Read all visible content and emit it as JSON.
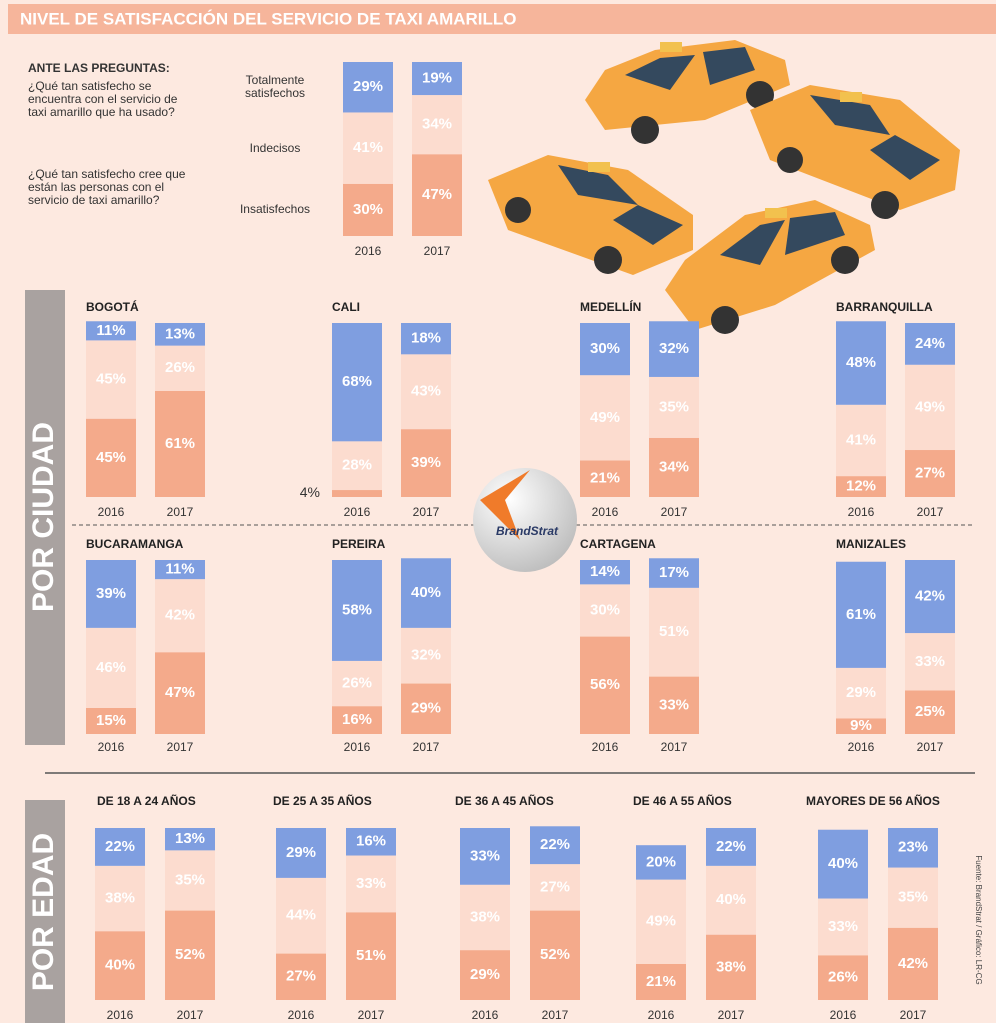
{
  "title": "NIVEL DE SATISFACCIÓN DEL SERVICIO DE TAXI AMARILLO",
  "intro": {
    "heading": "ANTE LAS PREGUNTAS:",
    "questions": [
      "¿Qué tan satisfecho se encuentra con el servicio de taxi amarillo que ha usado?",
      "¿Qué tan satisfecho cree que están las personas con el servicio de taxi amarillo?"
    ]
  },
  "section_labels": {
    "city": "POR CIUDAD",
    "age": "POR EDAD"
  },
  "logo": "BrandStrat",
  "source": "Fuente: BrandStrat / Gráfico: LR-CG",
  "chart_data": [
    {
      "type": "stacked_bar",
      "categories": [
        "2016",
        "2017"
      ],
      "ylim": [
        0,
        100
      ],
      "series": [
        {
          "name": "Totalmente satisfechos",
          "color": "#7f9ee0",
          "values": [
            29,
            19
          ],
          "value_labels": [
            "29%",
            "19%"
          ]
        },
        {
          "name": "Indecisos",
          "color": "#fcdccf",
          "values": [
            41,
            34
          ],
          "value_labels": [
            "41%",
            "34%"
          ]
        },
        {
          "name": "Insatisfechos",
          "color": "#f4aa8b",
          "values": [
            30,
            47
          ],
          "value_labels": [
            "30%",
            "47%"
          ]
        }
      ]
    },
    {
      "type": "stacked_bar",
      "title": "BOGOTÁ",
      "categories": [
        "2016",
        "2017"
      ],
      "ylim": [
        0,
        100
      ],
      "series": [
        {
          "color": "#7f9ee0",
          "values": [
            11,
            13
          ],
          "value_labels": [
            "11%",
            "13%"
          ]
        },
        {
          "color": "#fcdccf",
          "values": [
            45,
            26
          ],
          "value_labels": [
            "45%",
            "26%"
          ]
        },
        {
          "color": "#f4aa8b",
          "values": [
            45,
            61
          ],
          "value_labels": [
            "45%",
            "61%"
          ]
        }
      ]
    },
    {
      "type": "stacked_bar",
      "title": "CALI",
      "categories": [
        "2016",
        "2017"
      ],
      "ylim": [
        0,
        100
      ],
      "series": [
        {
          "color": "#7f9ee0",
          "values": [
            68,
            18
          ],
          "value_labels": [
            "68%",
            "18%"
          ]
        },
        {
          "color": "#fcdccf",
          "values": [
            28,
            43
          ],
          "value_labels": [
            "28%",
            "43%"
          ]
        },
        {
          "color": "#f4aa8b",
          "values": [
            4,
            39
          ],
          "value_labels": [
            "4%",
            "39%"
          ]
        }
      ]
    },
    {
      "type": "stacked_bar",
      "title": "MEDELLÍN",
      "categories": [
        "2016",
        "2017"
      ],
      "ylim": [
        0,
        100
      ],
      "series": [
        {
          "color": "#7f9ee0",
          "values": [
            30,
            32
          ],
          "value_labels": [
            "30%",
            "32%"
          ]
        },
        {
          "color": "#fcdccf",
          "values": [
            49,
            35
          ],
          "value_labels": [
            "49%",
            "35%"
          ]
        },
        {
          "color": "#f4aa8b",
          "values": [
            21,
            34
          ],
          "value_labels": [
            "21%",
            "34%"
          ]
        }
      ]
    },
    {
      "type": "stacked_bar",
      "title": "BARRANQUILLA",
      "categories": [
        "2016",
        "2017"
      ],
      "ylim": [
        0,
        100
      ],
      "series": [
        {
          "color": "#7f9ee0",
          "values": [
            48,
            24
          ],
          "value_labels": [
            "48%",
            "24%"
          ]
        },
        {
          "color": "#fcdccf",
          "values": [
            41,
            49
          ],
          "value_labels": [
            "41%",
            "49%"
          ]
        },
        {
          "color": "#f4aa8b",
          "values": [
            12,
            27
          ],
          "value_labels": [
            "12%",
            "27%"
          ]
        }
      ]
    },
    {
      "type": "stacked_bar",
      "title": "BUCARAMANGA",
      "categories": [
        "2016",
        "2017"
      ],
      "ylim": [
        0,
        100
      ],
      "series": [
        {
          "color": "#7f9ee0",
          "values": [
            39,
            11
          ],
          "value_labels": [
            "39%",
            "11%"
          ]
        },
        {
          "color": "#fcdccf",
          "values": [
            46,
            42
          ],
          "value_labels": [
            "46%",
            "42%"
          ]
        },
        {
          "color": "#f4aa8b",
          "values": [
            15,
            47
          ],
          "value_labels": [
            "15%",
            "47%"
          ]
        }
      ]
    },
    {
      "type": "stacked_bar",
      "title": "PEREIRA",
      "categories": [
        "2016",
        "2017"
      ],
      "ylim": [
        0,
        100
      ],
      "series": [
        {
          "color": "#7f9ee0",
          "values": [
            58,
            40
          ],
          "value_labels": [
            "58%",
            "40%"
          ]
        },
        {
          "color": "#fcdccf",
          "values": [
            26,
            32
          ],
          "value_labels": [
            "26%",
            "32%"
          ]
        },
        {
          "color": "#f4aa8b",
          "values": [
            16,
            29
          ],
          "value_labels": [
            "16%",
            "29%"
          ]
        }
      ]
    },
    {
      "type": "stacked_bar",
      "title": "CARTAGENA",
      "categories": [
        "2016",
        "2017"
      ],
      "ylim": [
        0,
        100
      ],
      "series": [
        {
          "color": "#7f9ee0",
          "values": [
            14,
            17
          ],
          "value_labels": [
            "14%",
            "17%"
          ]
        },
        {
          "color": "#fcdccf",
          "values": [
            30,
            51
          ],
          "value_labels": [
            "30%",
            "51%"
          ]
        },
        {
          "color": "#f4aa8b",
          "values": [
            56,
            33
          ],
          "value_labels": [
            "56%",
            "33%"
          ]
        }
      ]
    },
    {
      "type": "stacked_bar",
      "title": "MANIZALES",
      "categories": [
        "2016",
        "2017"
      ],
      "ylim": [
        0,
        100
      ],
      "series": [
        {
          "color": "#7f9ee0",
          "values": [
            61,
            42
          ],
          "value_labels": [
            "61%",
            "42%"
          ]
        },
        {
          "color": "#fcdccf",
          "values": [
            29,
            33
          ],
          "value_labels": [
            "29%",
            "33%"
          ]
        },
        {
          "color": "#f4aa8b",
          "values": [
            9,
            25
          ],
          "value_labels": [
            "9%",
            "25%"
          ]
        }
      ]
    },
    {
      "type": "stacked_bar",
      "title": "DE 18 A 24 AÑOS",
      "categories": [
        "2016",
        "2017"
      ],
      "ylim": [
        0,
        100
      ],
      "series": [
        {
          "color": "#7f9ee0",
          "values": [
            22,
            13
          ],
          "value_labels": [
            "22%",
            "13%"
          ]
        },
        {
          "color": "#fcdccf",
          "values": [
            38,
            35
          ],
          "value_labels": [
            "38%",
            "35%"
          ]
        },
        {
          "color": "#f4aa8b",
          "values": [
            40,
            52
          ],
          "value_labels": [
            "40%",
            "52%"
          ]
        }
      ]
    },
    {
      "type": "stacked_bar",
      "title": "DE 25 A 35 AÑOS",
      "categories": [
        "2016",
        "2017"
      ],
      "ylim": [
        0,
        100
      ],
      "series": [
        {
          "color": "#7f9ee0",
          "values": [
            29,
            16
          ],
          "value_labels": [
            "29%",
            "16%"
          ]
        },
        {
          "color": "#fcdccf",
          "values": [
            44,
            33
          ],
          "value_labels": [
            "44%",
            "33%"
          ]
        },
        {
          "color": "#f4aa8b",
          "values": [
            27,
            51
          ],
          "value_labels": [
            "27%",
            "51%"
          ]
        }
      ]
    },
    {
      "type": "stacked_bar",
      "title": "DE 36 A 45 AÑOS",
      "categories": [
        "2016",
        "2017"
      ],
      "ylim": [
        0,
        100
      ],
      "series": [
        {
          "color": "#7f9ee0",
          "values": [
            33,
            22
          ],
          "value_labels": [
            "33%",
            "22%"
          ]
        },
        {
          "color": "#fcdccf",
          "values": [
            38,
            27
          ],
          "value_labels": [
            "38%",
            "27%"
          ]
        },
        {
          "color": "#f4aa8b",
          "values": [
            29,
            52
          ],
          "value_labels": [
            "29%",
            "52%"
          ]
        }
      ]
    },
    {
      "type": "stacked_bar",
      "title": "DE 46 A 55 AÑOS",
      "categories": [
        "2016",
        "2017"
      ],
      "ylim": [
        0,
        100
      ],
      "series": [
        {
          "color": "#7f9ee0",
          "values": [
            20,
            22
          ],
          "value_labels": [
            "20%",
            "22%"
          ]
        },
        {
          "color": "#fcdccf",
          "values": [
            49,
            40
          ],
          "value_labels": [
            "49%",
            "40%"
          ]
        },
        {
          "color": "#f4aa8b",
          "values": [
            21,
            38
          ],
          "value_labels": [
            "21%",
            "38%"
          ]
        }
      ]
    },
    {
      "type": "stacked_bar",
      "title": "MAYORES DE 56 AÑOS",
      "categories": [
        "2016",
        "2017"
      ],
      "ylim": [
        0,
        100
      ],
      "series": [
        {
          "color": "#7f9ee0",
          "values": [
            40,
            23
          ],
          "value_labels": [
            "40%",
            "23%"
          ]
        },
        {
          "color": "#fcdccf",
          "values": [
            33,
            35
          ],
          "value_labels": [
            "33%",
            "35%"
          ]
        },
        {
          "color": "#f4aa8b",
          "values": [
            26,
            42
          ],
          "value_labels": [
            "26%",
            "42%"
          ]
        }
      ]
    }
  ]
}
